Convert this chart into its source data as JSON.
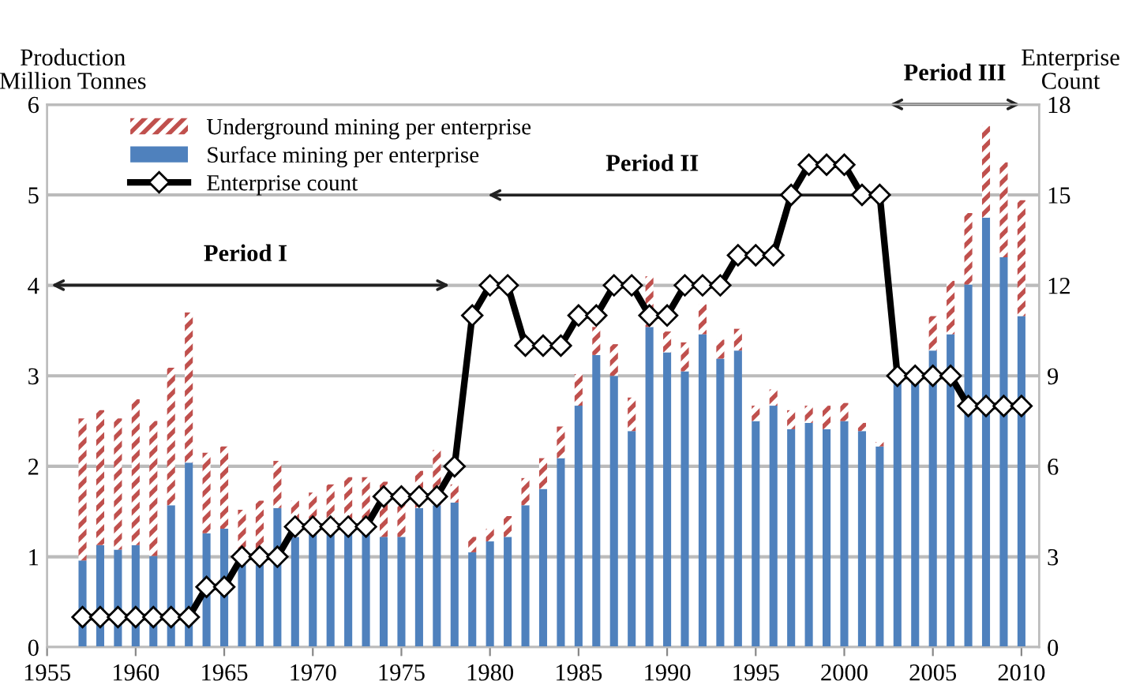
{
  "chart_data": {
    "type": "bar",
    "stacked": true,
    "ylabel": "Production\nMillion Tonnes",
    "y2label": "Enterprise\nCount",
    "x": [
      1957,
      1958,
      1959,
      1960,
      1961,
      1962,
      1963,
      1964,
      1965,
      1966,
      1967,
      1968,
      1969,
      1970,
      1971,
      1972,
      1973,
      1974,
      1975,
      1976,
      1977,
      1978,
      1979,
      1980,
      1981,
      1982,
      1983,
      1984,
      1985,
      1986,
      1987,
      1988,
      1989,
      1990,
      1991,
      1992,
      1993,
      1994,
      1995,
      1996,
      1997,
      1998,
      1999,
      2000,
      2001,
      2002,
      2003,
      2004,
      2005,
      2006,
      2007,
      2008,
      2009,
      2010
    ],
    "series": [
      {
        "name": "Surface mining per enterprise",
        "color": "#4f81bd",
        "values": [
          0.96,
          1.13,
          1.08,
          1.13,
          1.01,
          1.57,
          2.04,
          1.26,
          1.31,
          0.96,
          0.91,
          1.54,
          1.22,
          1.27,
          1.27,
          1.27,
          1.27,
          1.22,
          1.22,
          1.54,
          1.57,
          1.6,
          1.05,
          1.17,
          1.22,
          1.57,
          1.75,
          2.09,
          2.67,
          3.23,
          3.0,
          2.39,
          3.54,
          3.26,
          3.05,
          3.46,
          3.19,
          3.28,
          2.5,
          2.67,
          2.41,
          2.48,
          2.41,
          2.5,
          2.39,
          2.22,
          2.95,
          2.95,
          3.28,
          3.46,
          4.01,
          4.75,
          4.31,
          3.66
        ]
      },
      {
        "name": "Underground mining per enterprise",
        "color": "#c0504d",
        "values": [
          1.57,
          1.49,
          1.45,
          1.61,
          1.49,
          1.52,
          1.66,
          0.89,
          0.91,
          0.56,
          0.71,
          0.52,
          0.4,
          0.44,
          0.53,
          0.61,
          0.61,
          0.61,
          0.53,
          0.41,
          0.61,
          0.2,
          0.17,
          0.14,
          0.23,
          0.3,
          0.34,
          0.35,
          0.35,
          0.31,
          0.35,
          0.37,
          0.56,
          0.23,
          0.32,
          0.33,
          0.21,
          0.24,
          0.17,
          0.18,
          0.21,
          0.19,
          0.26,
          0.2,
          0.09,
          0.05,
          null,
          null,
          0.38,
          0.59,
          0.79,
          1.01,
          1.05,
          1.28
        ]
      },
      {
        "name": "Enterprise count",
        "type": "line",
        "axis": "y2",
        "color": "#000000",
        "marker": "diamond",
        "values": [
          1,
          1,
          1,
          1,
          1,
          1,
          1,
          2,
          2,
          3,
          3,
          3,
          4,
          4,
          4,
          4,
          4,
          5,
          5,
          5,
          5,
          6,
          11,
          12,
          12,
          10,
          10,
          10,
          11,
          11,
          12,
          12,
          11,
          11,
          12,
          12,
          12,
          13,
          13,
          13,
          15,
          16,
          16,
          16,
          15,
          15,
          9,
          9,
          9,
          9,
          8,
          8,
          8,
          8
        ]
      }
    ],
    "xlim": [
      1955,
      2011
    ],
    "xticks": [
      1955,
      1960,
      1965,
      1970,
      1975,
      1980,
      1985,
      1990,
      1995,
      2000,
      2005,
      2010
    ],
    "ylim": [
      0,
      6
    ],
    "yticks": [
      0,
      1,
      2,
      3,
      4,
      5,
      6
    ],
    "y2lim": [
      0,
      18
    ],
    "y2ticks": [
      0,
      3,
      6,
      9,
      12,
      15,
      18
    ],
    "grid": "y",
    "legend": "top left",
    "annotations": [
      "Period I",
      "Period II",
      "Period III"
    ]
  }
}
